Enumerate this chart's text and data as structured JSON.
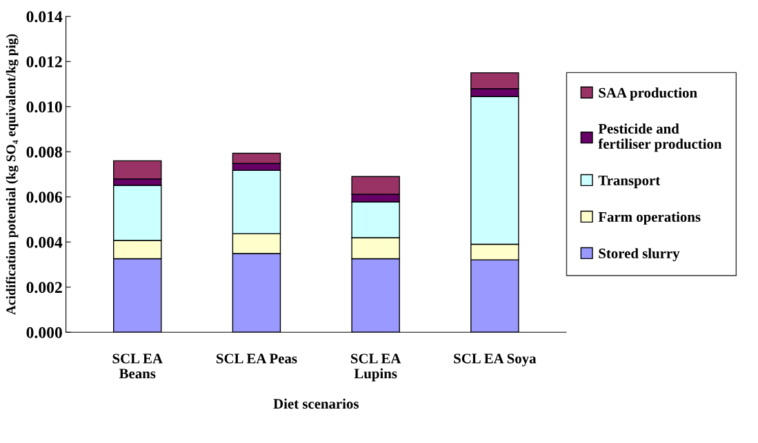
{
  "chart_data": {
    "type": "bar",
    "stacked": true,
    "xlabel": "Diet scenarios",
    "ylabel": "Acidification potential (kg SO₄ equivalent/kg pig)",
    "categories": [
      "SCL EA\nBeans",
      "SCL EA Peas",
      "SCL EA\nLupins",
      "SCL EA Soya"
    ],
    "series": [
      {
        "name": "Stored slurry",
        "color": "#9999ff",
        "values": [
          0.00326,
          0.00349,
          0.00326,
          0.00321
        ]
      },
      {
        "name": "Farm operations",
        "color": "#ffffcc",
        "values": [
          0.00081,
          0.00088,
          0.00093,
          0.00069
        ]
      },
      {
        "name": "Transport",
        "color": "#ccffff",
        "values": [
          0.00244,
          0.00281,
          0.00159,
          0.00655
        ]
      },
      {
        "name": "Pesticide and\nfertiliser production",
        "color": "#660066",
        "values": [
          0.00029,
          0.0003,
          0.00034,
          0.00035
        ]
      },
      {
        "name": "SAA production",
        "color": "#993366",
        "values": [
          0.0008,
          0.00045,
          0.00078,
          0.0007
        ]
      }
    ],
    "ylim": [
      0,
      0.014
    ],
    "yticks": [
      {
        "value": 0,
        "label": "0.000"
      },
      {
        "value": 0.002,
        "label": "0.002"
      },
      {
        "value": 0.004,
        "label": "0.004"
      },
      {
        "value": 0.006,
        "label": "0.006"
      },
      {
        "value": 0.008,
        "label": "0.008"
      },
      {
        "value": 0.01,
        "label": "0.010"
      },
      {
        "value": 0.012,
        "label": "0.012"
      },
      {
        "value": 0.014,
        "label": "0.014"
      }
    ],
    "grid": false,
    "legend": "right"
  }
}
